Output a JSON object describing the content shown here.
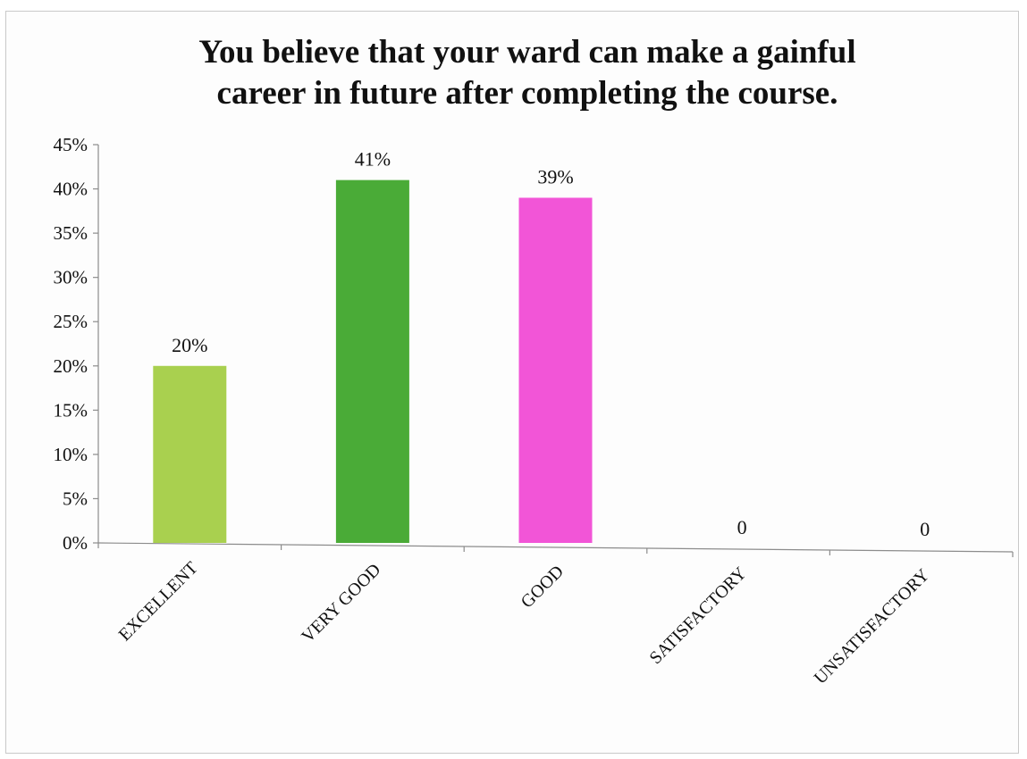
{
  "chart_data": {
    "type": "bar",
    "title": "You believe that your ward can make a gainful career in future after completing the course.",
    "title_lines": [
      "You believe that your ward can make a gainful",
      "career in future after completing the course."
    ],
    "categories": [
      "EXCELLENT",
      "VERY GOOD",
      "GOOD",
      "SATISFACTORY",
      "UNSATISFACTORY"
    ],
    "values": [
      20,
      41,
      39,
      0,
      0
    ],
    "data_labels": [
      "20%",
      "41%",
      "39%",
      "0",
      "0"
    ],
    "bar_colors": [
      "#a9d04f",
      "#4aab37",
      "#f255d7",
      "#a9d04f",
      "#a9d04f"
    ],
    "ylim": [
      0,
      45
    ],
    "yticks": [
      0,
      5,
      10,
      15,
      20,
      25,
      30,
      35,
      40,
      45
    ],
    "ytick_labels": [
      "0%",
      "5%",
      "10%",
      "15%",
      "20%",
      "25%",
      "30%",
      "35%",
      "40%",
      "45%"
    ],
    "xlabel": "",
    "ylabel": "",
    "grid": false,
    "legend": "none"
  }
}
